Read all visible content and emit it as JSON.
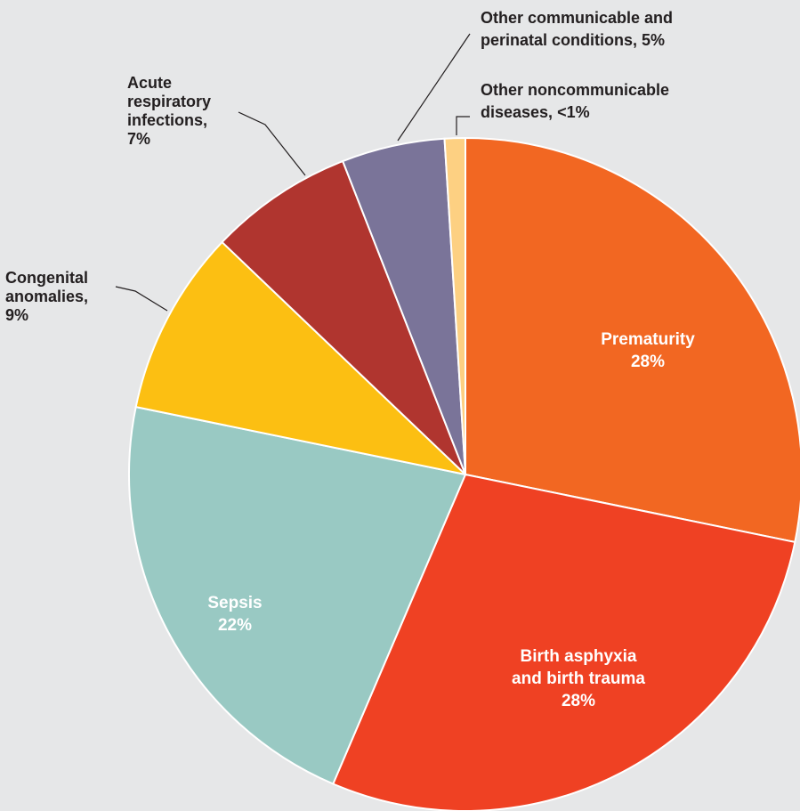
{
  "chart_data": {
    "type": "pie",
    "start_angle_deg": 0,
    "direction": "clockwise",
    "slices": [
      {
        "label": "Prematurity",
        "value": 28.5,
        "display": "28%",
        "color": "#f26722",
        "label_style": "inside",
        "lines": [
          "Prematurity",
          "28%"
        ]
      },
      {
        "label": "Birth asphyxia and birth trauma",
        "value": 28.5,
        "display": "28%",
        "color": "#ef4123",
        "label_style": "inside",
        "lines": [
          "Birth asphyxia",
          "and birth trauma",
          "28%"
        ]
      },
      {
        "label": "Sepsis",
        "value": 22,
        "display": "22%",
        "color": "#99c9c3",
        "label_style": "inside",
        "lines": [
          "Sepsis",
          "22%"
        ]
      },
      {
        "label": "Congenital anomalies",
        "value": 9,
        "display": "9%",
        "color": "#fcbf12",
        "label_style": "outside",
        "lines": [
          "Congenital",
          "anomalies,",
          "9%"
        ]
      },
      {
        "label": "Acute respiratory infections",
        "value": 7,
        "display": "7%",
        "color": "#b0352f",
        "label_style": "outside",
        "lines": [
          "Acute",
          "respiratory",
          "infections,",
          "7%"
        ]
      },
      {
        "label": "Other communicable and perinatal conditions",
        "value": 5,
        "display": "5%",
        "color": "#7a7499",
        "label_style": "outside",
        "lines": [
          "Other communicable and",
          "perinatal conditions, 5%"
        ]
      },
      {
        "label": "Other noncommunicable diseases",
        "value": 1,
        "display": "<1%",
        "color": "#fdd082",
        "label_style": "outside",
        "lines": [
          "Other noncommunicable",
          "diseases, <1%"
        ]
      }
    ]
  }
}
